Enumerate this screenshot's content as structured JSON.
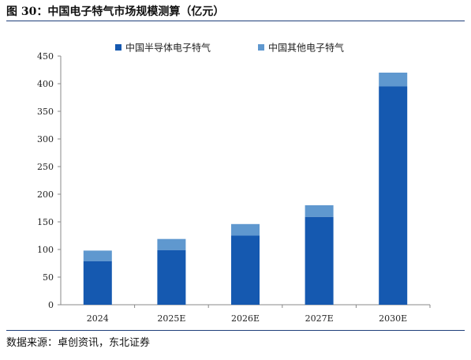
{
  "figure": {
    "title": "图 30：中国电子特气市场规模测算（亿元）",
    "source": "数据来源：卓创资讯，东北证券"
  },
  "colors": {
    "semiconductor": "#1559b0",
    "other": "#5f98cf",
    "rule": "#1f3f7a"
  },
  "chart_data": {
    "type": "bar",
    "stacked": true,
    "categories": [
      "2024",
      "2025E",
      "2026E",
      "2027E",
      "2030E"
    ],
    "series": [
      {
        "name": "中国半导体电子特气",
        "values": [
          79,
          99,
          125,
          159,
          395
        ]
      },
      {
        "name": "中国其他电子特气",
        "values": [
          19,
          20,
          21,
          21,
          25
        ]
      }
    ],
    "ylim": [
      0,
      450
    ],
    "yticks": [
      0,
      50,
      100,
      150,
      200,
      250,
      300,
      350,
      400,
      450
    ],
    "grid": false,
    "legend": "top"
  }
}
